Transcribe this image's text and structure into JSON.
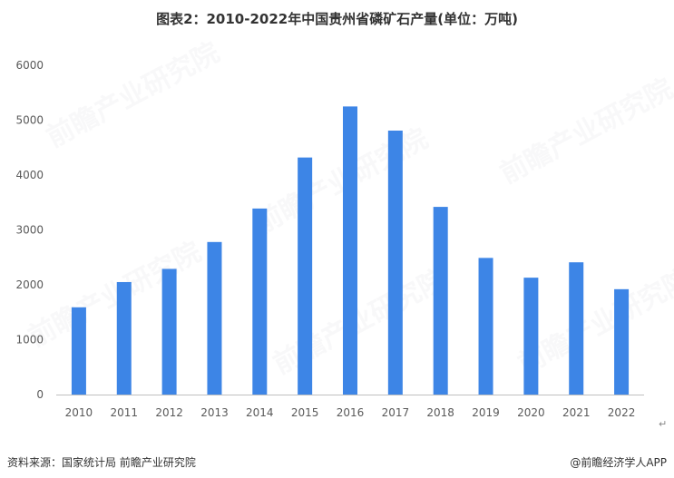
{
  "title": "图表2：2010-2022年中国贵州省磷矿石产量(单位：万吨)",
  "source": "资料来源：国家统计局 前瞻产业研究院",
  "brand": "@前瞻经济学人APP",
  "watermark": "前瞻产业研究院",
  "return_mark": "↵",
  "colors": {
    "bar": "#3d85e6",
    "axis": "#bfbfbf",
    "text": "#595959"
  },
  "chart_data": {
    "type": "bar",
    "title": "图表2：2010-2022年中国贵州省磷矿石产量(单位：万吨)",
    "categories": [
      "2010",
      "2011",
      "2012",
      "2013",
      "2014",
      "2015",
      "2016",
      "2017",
      "2018",
      "2019",
      "2020",
      "2021",
      "2022"
    ],
    "values": [
      1590,
      2050,
      2290,
      2780,
      3390,
      4320,
      5250,
      4810,
      3420,
      2490,
      2130,
      2410,
      1920
    ],
    "yticks": [
      0,
      1000,
      2000,
      3000,
      4000,
      5000,
      6000
    ],
    "ylim": [
      0,
      6000
    ],
    "grid": false,
    "legend": "none"
  }
}
